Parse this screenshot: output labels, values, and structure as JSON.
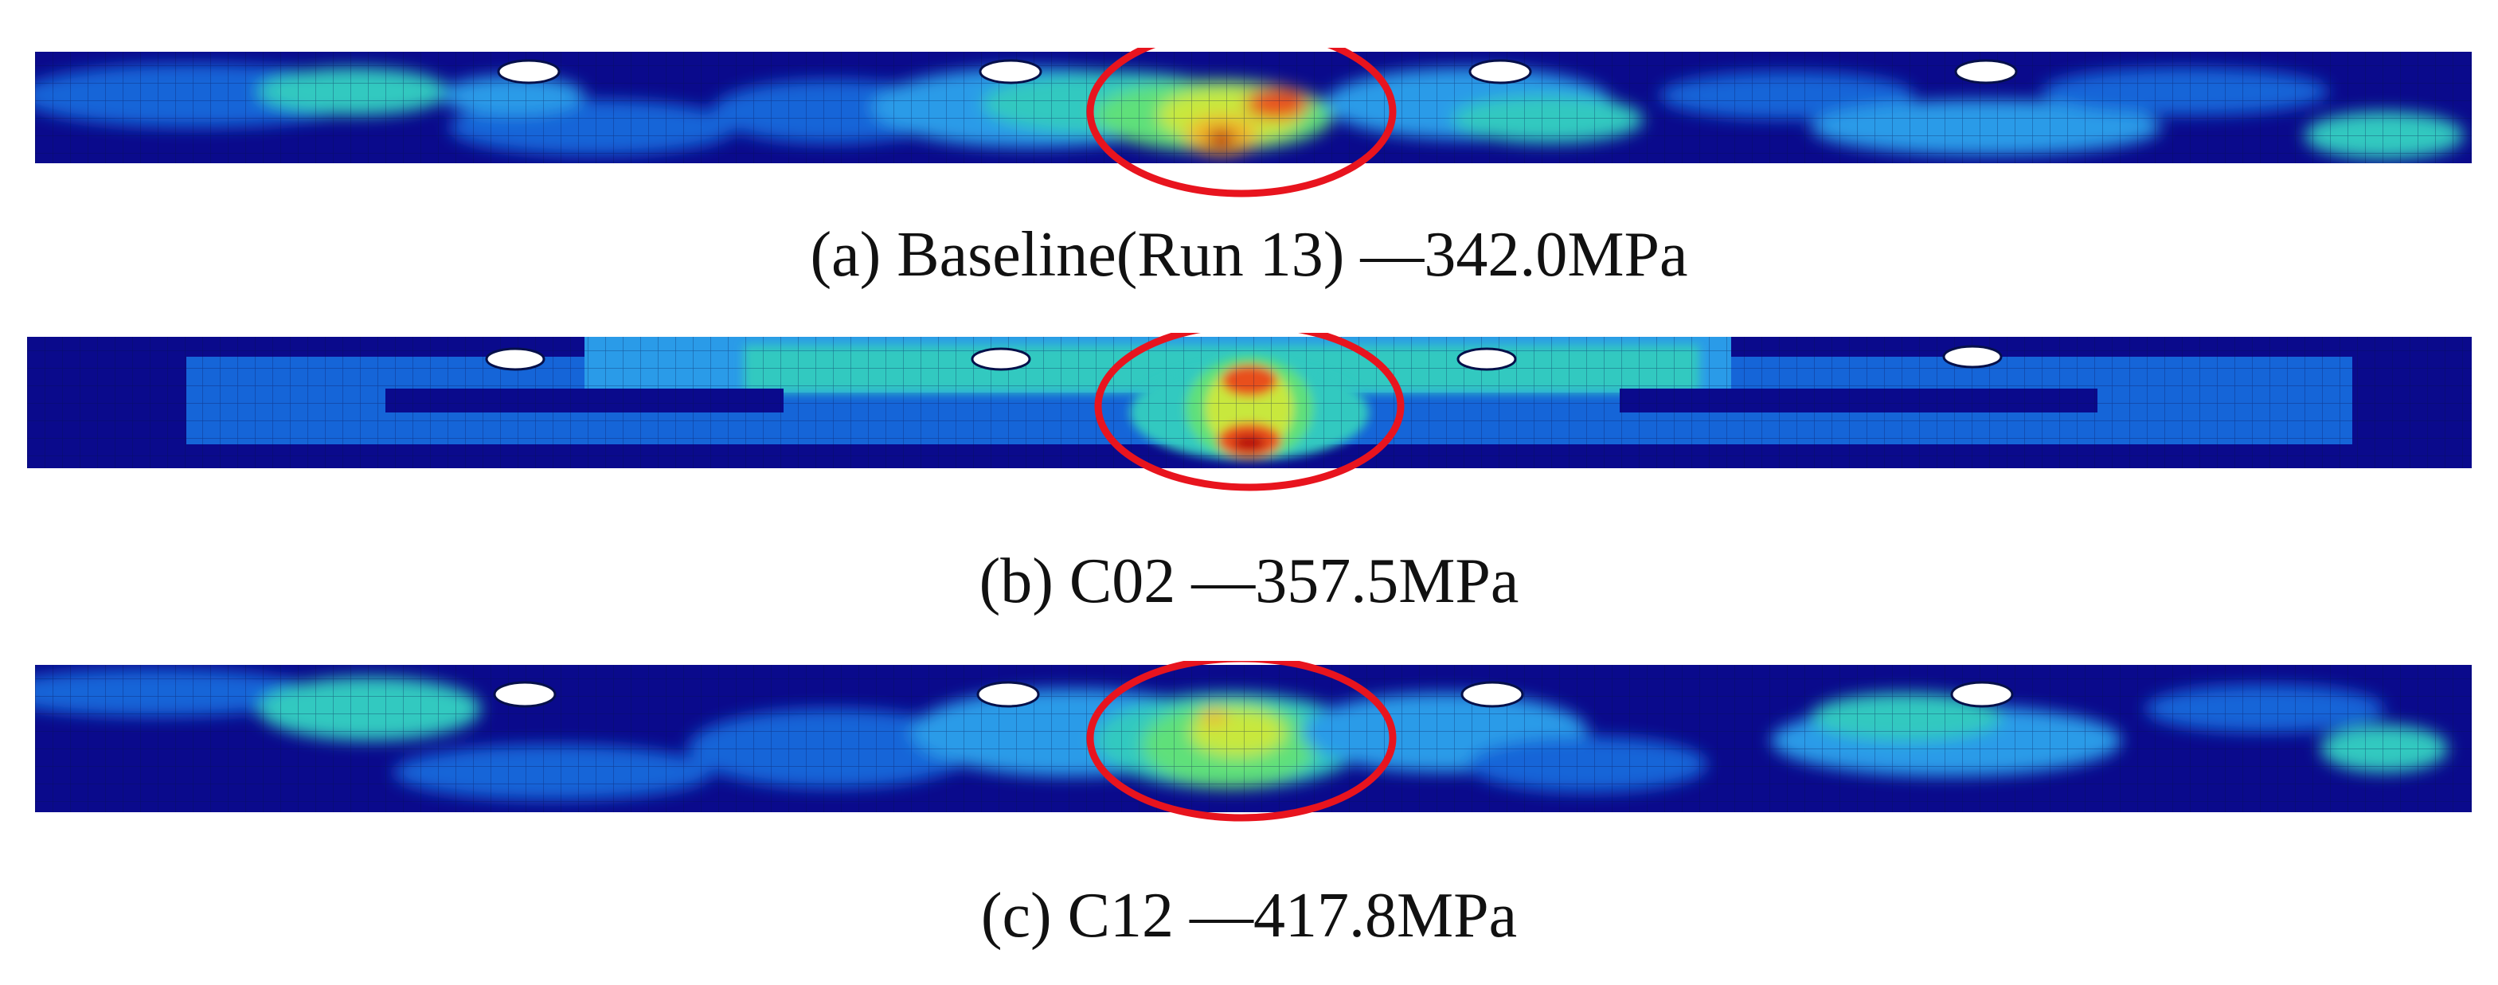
{
  "panels": [
    {
      "id": "a",
      "caption": "(a) Baseline(Run 13) —342.0MPa",
      "stress_mpa": 342.0
    },
    {
      "id": "b",
      "caption": "(b) C02 —357.5MPa",
      "stress_mpa": 357.5
    },
    {
      "id": "c",
      "caption": "(c) C12 —417.8MPa",
      "stress_mpa": 417.8
    }
  ],
  "colors": {
    "contour_levels": [
      "#0a0a8c",
      "#1565d8",
      "#2a9be8",
      "#33c9c0",
      "#5ee07a",
      "#c8e83c",
      "#f0b82a",
      "#e8501e",
      "#b80a0a"
    ],
    "highlight_ellipse": "#e8141e",
    "hole": "#ffffff"
  }
}
